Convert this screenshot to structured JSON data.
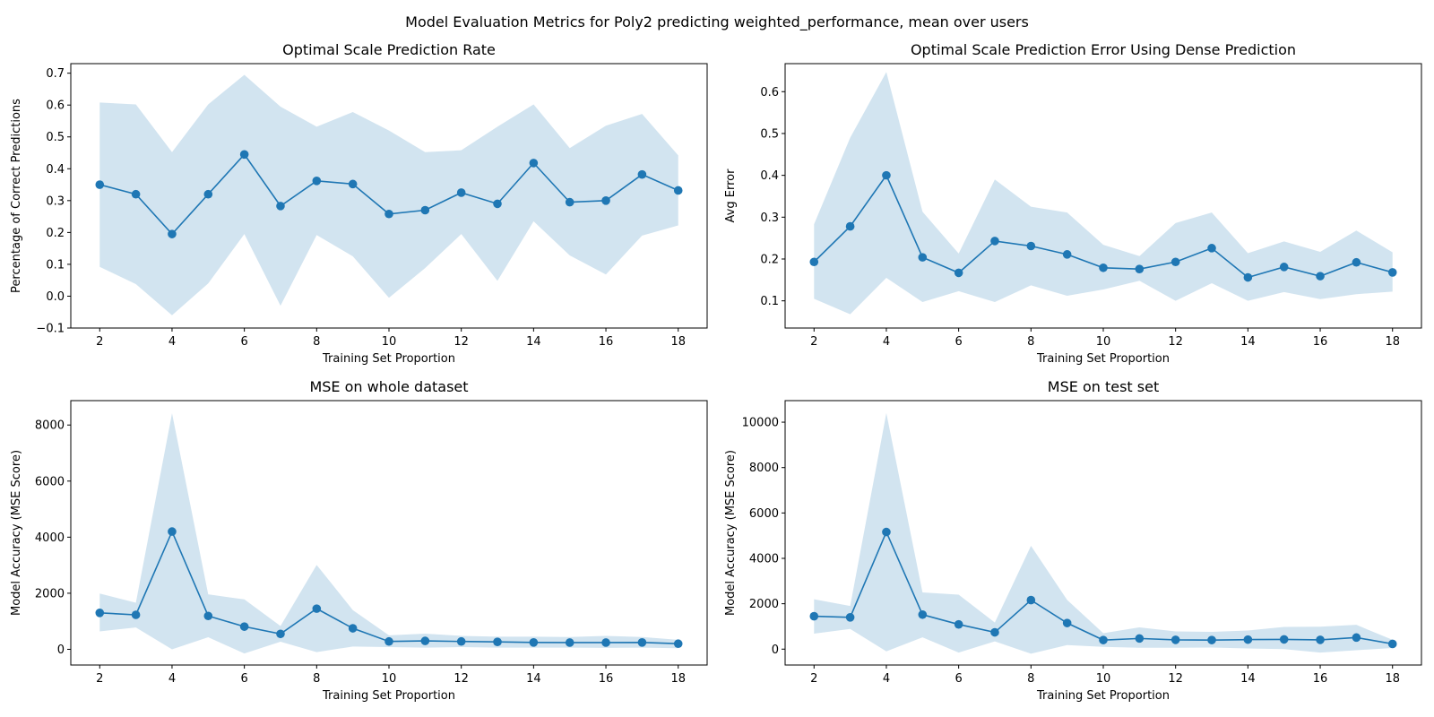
{
  "figure": {
    "suptitle": "Model Evaluation Metrics for Poly2 predicting weighted_performance, mean over users"
  },
  "colors": {
    "line": "#1f77b4",
    "band": "#1f77b4",
    "band_opacity": 0.2
  },
  "chart_data": [
    {
      "type": "line",
      "title": "Optimal Scale Prediction Rate",
      "xlabel": "Training Set Proportion",
      "ylabel": "Percentage of Correct Predictions",
      "x": [
        2,
        3,
        4,
        5,
        6,
        7,
        8,
        9,
        10,
        11,
        12,
        13,
        14,
        15,
        16,
        17,
        18
      ],
      "series": [
        {
          "values": [
            0.35,
            0.32,
            0.195,
            0.32,
            0.445,
            0.283,
            0.362,
            0.352,
            0.258,
            0.27,
            0.325,
            0.29,
            0.418,
            0.295,
            0.3,
            0.382,
            0.332
          ],
          "lower": [
            0.092,
            0.038,
            -0.06,
            0.04,
            0.195,
            -0.03,
            0.192,
            0.125,
            -0.005,
            0.088,
            0.195,
            0.048,
            0.235,
            0.128,
            0.068,
            0.19,
            0.222
          ],
          "upper": [
            0.608,
            0.602,
            0.452,
            0.602,
            0.695,
            0.595,
            0.532,
            0.578,
            0.52,
            0.452,
            0.458,
            0.532,
            0.602,
            0.465,
            0.535,
            0.572,
            0.442
          ]
        }
      ],
      "xlim": [
        1.2,
        18.8
      ],
      "ylim": [
        -0.1,
        0.73
      ],
      "xticks": [
        2,
        4,
        6,
        8,
        10,
        12,
        14,
        16,
        18
      ],
      "yticks": [
        -0.1,
        0.0,
        0.1,
        0.2,
        0.3,
        0.4,
        0.5,
        0.6,
        0.7
      ],
      "ytick_labels": [
        "−0.1",
        "0.0",
        "0.1",
        "0.2",
        "0.3",
        "0.4",
        "0.5",
        "0.6",
        "0.7"
      ],
      "grid": false
    },
    {
      "type": "line",
      "title": "Optimal Scale Prediction Error Using Dense Prediction",
      "xlabel": "Training Set Proportion",
      "ylabel": "Avg Error",
      "x": [
        2,
        3,
        4,
        5,
        6,
        7,
        8,
        9,
        10,
        11,
        12,
        13,
        14,
        15,
        16,
        17,
        18
      ],
      "series": [
        {
          "values": [
            0.193,
            0.278,
            0.4,
            0.204,
            0.167,
            0.243,
            0.231,
            0.211,
            0.179,
            0.176,
            0.193,
            0.226,
            0.156,
            0.181,
            0.159,
            0.192,
            0.168
          ],
          "lower": [
            0.105,
            0.068,
            0.155,
            0.097,
            0.123,
            0.097,
            0.137,
            0.112,
            0.127,
            0.148,
            0.1,
            0.142,
            0.1,
            0.121,
            0.104,
            0.116,
            0.122
          ],
          "upper": [
            0.283,
            0.49,
            0.647,
            0.313,
            0.213,
            0.39,
            0.325,
            0.311,
            0.234,
            0.207,
            0.286,
            0.311,
            0.214,
            0.242,
            0.217,
            0.268,
            0.216
          ]
        }
      ],
      "xlim": [
        1.2,
        18.8
      ],
      "ylim": [
        0.035,
        0.667
      ],
      "xticks": [
        2,
        4,
        6,
        8,
        10,
        12,
        14,
        16,
        18
      ],
      "yticks": [
        0.1,
        0.2,
        0.3,
        0.4,
        0.5,
        0.6
      ],
      "ytick_labels": [
        "0.1",
        "0.2",
        "0.3",
        "0.4",
        "0.5",
        "0.6"
      ],
      "grid": false
    },
    {
      "type": "line",
      "title": "MSE on whole dataset",
      "xlabel": "Training Set Proportion",
      "ylabel": "Model Accuracy (MSE Score)",
      "x": [
        2,
        3,
        4,
        5,
        6,
        7,
        8,
        9,
        10,
        11,
        12,
        13,
        14,
        15,
        16,
        17,
        18
      ],
      "series": [
        {
          "values": [
            1300,
            1230,
            4200,
            1190,
            810,
            550,
            1450,
            750,
            280,
            300,
            280,
            265,
            245,
            240,
            240,
            245,
            200
          ],
          "lower": [
            640,
            780,
            0,
            430,
            -150,
            270,
            -100,
            100,
            80,
            60,
            80,
            60,
            60,
            60,
            50,
            60,
            40
          ],
          "upper": [
            1990,
            1660,
            8420,
            1960,
            1780,
            830,
            3010,
            1400,
            500,
            560,
            480,
            450,
            450,
            440,
            480,
            440,
            340
          ]
        }
      ],
      "xlim": [
        1.2,
        18.8
      ],
      "ylim": [
        -560,
        8870
      ],
      "xticks": [
        2,
        4,
        6,
        8,
        10,
        12,
        14,
        16,
        18
      ],
      "yticks": [
        0,
        2000,
        4000,
        6000,
        8000
      ],
      "ytick_labels": [
        "0",
        "2000",
        "4000",
        "6000",
        "8000"
      ],
      "grid": false
    },
    {
      "type": "line",
      "title": "MSE on test set",
      "xlabel": "Training Set Proportion",
      "ylabel": "Model Accuracy (MSE Score)",
      "x": [
        2,
        3,
        4,
        5,
        6,
        7,
        8,
        9,
        10,
        11,
        12,
        13,
        14,
        15,
        16,
        17,
        18
      ],
      "series": [
        {
          "values": [
            1450,
            1400,
            5160,
            1520,
            1090,
            740,
            2160,
            1150,
            400,
            470,
            410,
            400,
            420,
            430,
            410,
            510,
            230
          ],
          "lower": [
            680,
            890,
            -100,
            520,
            -150,
            340,
            -200,
            180,
            100,
            60,
            60,
            70,
            30,
            0,
            -150,
            -50,
            50
          ],
          "upper": [
            2200,
            1900,
            10400,
            2500,
            2400,
            1170,
            4550,
            2170,
            700,
            960,
            780,
            760,
            820,
            980,
            990,
            1070,
            410
          ]
        }
      ],
      "xlim": [
        1.2,
        18.8
      ],
      "ylim": [
        -700,
        10950
      ],
      "xticks": [
        2,
        4,
        6,
        8,
        10,
        12,
        14,
        16,
        18
      ],
      "yticks": [
        0,
        2000,
        4000,
        6000,
        8000,
        10000
      ],
      "ytick_labels": [
        "0",
        "2000",
        "4000",
        "6000",
        "8000",
        "10000"
      ],
      "grid": false
    }
  ]
}
